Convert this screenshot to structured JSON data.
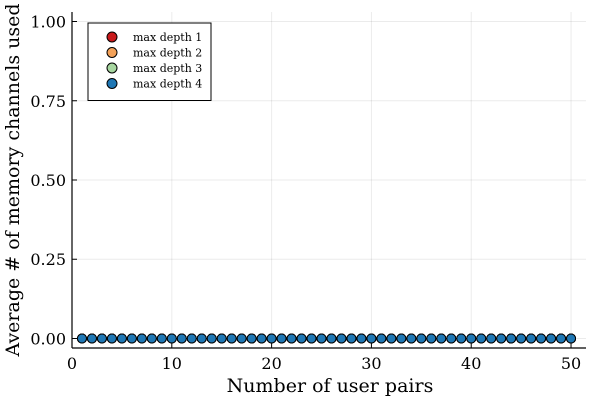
{
  "chart_data": {
    "type": "scatter",
    "xlabel": "Number of user pairs",
    "ylabel": "Average # of memory channels used",
    "xlim": [
      0,
      51.5
    ],
    "ylim": [
      -0.03,
      1.03
    ],
    "xticks": [
      0,
      10,
      20,
      30,
      40,
      50
    ],
    "xtick_labels": [
      "0",
      "10",
      "20",
      "30",
      "40",
      "50"
    ],
    "yticks": [
      0,
      0.25,
      0.5,
      0.75,
      1.0
    ],
    "ytick_labels": [
      "0.00",
      "0.25",
      "0.50",
      "0.75",
      "1.00"
    ],
    "grid": true,
    "legend_position": "top-left",
    "x": [
      1,
      2,
      3,
      4,
      5,
      6,
      7,
      8,
      9,
      10,
      11,
      12,
      13,
      14,
      15,
      16,
      17,
      18,
      19,
      20,
      21,
      22,
      23,
      24,
      25,
      26,
      27,
      28,
      29,
      30,
      31,
      32,
      33,
      34,
      35,
      36,
      37,
      38,
      39,
      40,
      41,
      42,
      43,
      44,
      45,
      46,
      47,
      48,
      49,
      50
    ],
    "series": [
      {
        "name": "max depth 1",
        "color": "#c8191b",
        "values": [
          0,
          0,
          0,
          0,
          0,
          0,
          0,
          0,
          0,
          0,
          0,
          0,
          0,
          0,
          0,
          0,
          0,
          0,
          0,
          0,
          0,
          0,
          0,
          0,
          0,
          0,
          0,
          0,
          0,
          0,
          0,
          0,
          0,
          0,
          0,
          0,
          0,
          0,
          0,
          0,
          0,
          0,
          0,
          0,
          0,
          0,
          0,
          0,
          0,
          0
        ]
      },
      {
        "name": "max depth 2",
        "color": "#f4a259",
        "values": [
          0,
          0,
          0,
          0,
          0,
          0,
          0,
          0,
          0,
          0,
          0,
          0,
          0,
          0,
          0,
          0,
          0,
          0,
          0,
          0,
          0,
          0,
          0,
          0,
          0,
          0,
          0,
          0,
          0,
          0,
          0,
          0,
          0,
          0,
          0,
          0,
          0,
          0,
          0,
          0,
          0,
          0,
          0,
          0,
          0,
          0,
          0,
          0,
          0,
          0
        ]
      },
      {
        "name": "max depth 3",
        "color": "#a7d6a0",
        "values": [
          0,
          0,
          0,
          0,
          0,
          0,
          0,
          0,
          0,
          0,
          0,
          0,
          0,
          0,
          0,
          0,
          0,
          0,
          0,
          0,
          0,
          0,
          0,
          0,
          0,
          0,
          0,
          0,
          0,
          0,
          0,
          0,
          0,
          0,
          0,
          0,
          0,
          0,
          0,
          0,
          0,
          0,
          0,
          0,
          0,
          0,
          0,
          0,
          0,
          0
        ]
      },
      {
        "name": "max depth 4",
        "color": "#1f77b4",
        "values": [
          0,
          0,
          0,
          0,
          0,
          0,
          0,
          0,
          0,
          0,
          0,
          0,
          0,
          0,
          0,
          0,
          0,
          0,
          0,
          0,
          0,
          0,
          0,
          0,
          0,
          0,
          0,
          0,
          0,
          0,
          0,
          0,
          0,
          0,
          0,
          0,
          0,
          0,
          0,
          0,
          0,
          0,
          0,
          0,
          0,
          0,
          0,
          0,
          0,
          0
        ]
      }
    ]
  }
}
